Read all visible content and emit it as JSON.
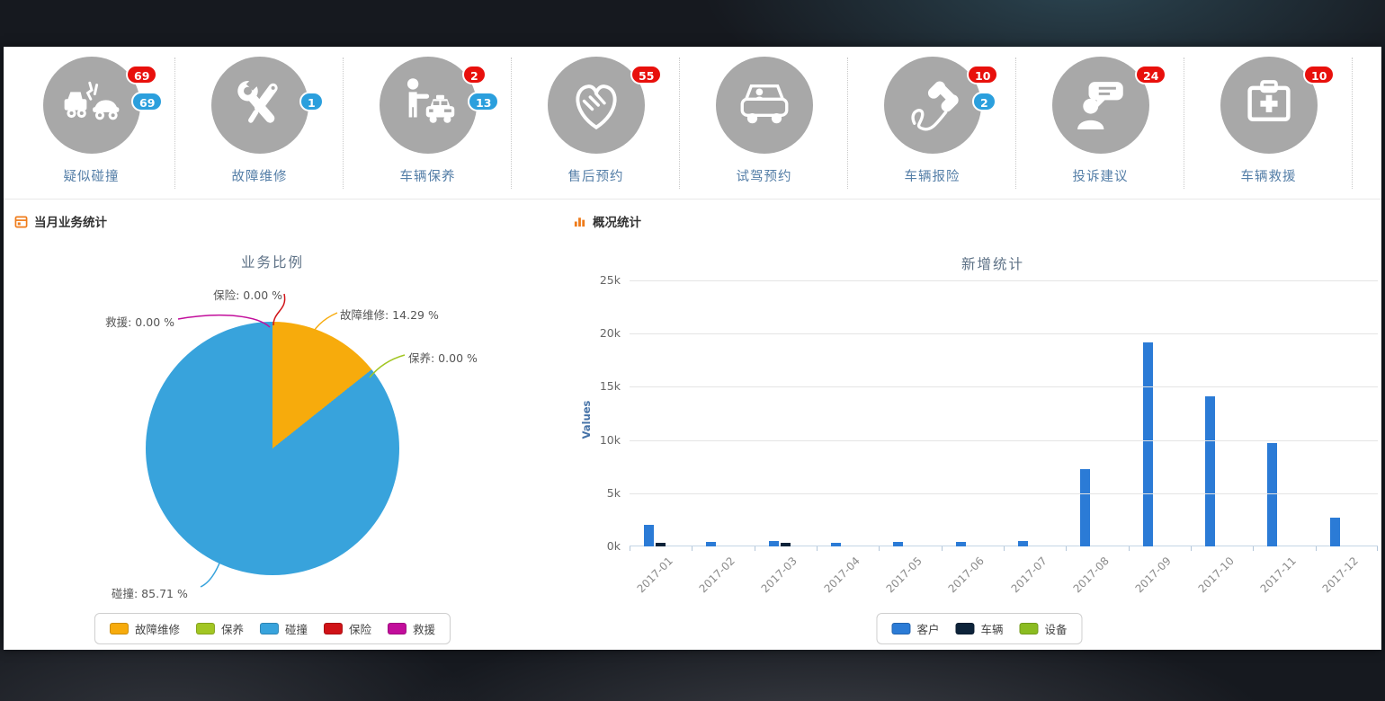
{
  "quick_actions": [
    {
      "label": "疑似碰撞",
      "icon": "car-crash-icon",
      "badge_red": "69",
      "badge_blue": "69"
    },
    {
      "label": "故障维修",
      "icon": "repair-tools-icon",
      "badge_blue": "1"
    },
    {
      "label": "车辆保养",
      "icon": "car-maintenance-icon",
      "badge_red": "2",
      "badge_blue": "13"
    },
    {
      "label": "售后预约",
      "icon": "handshake-icon",
      "badge_red": "55"
    },
    {
      "label": "试驾预约",
      "icon": "test-drive-car-icon"
    },
    {
      "label": "车辆报险",
      "icon": "phone-report-icon",
      "badge_red": "10",
      "badge_blue": "2"
    },
    {
      "label": "投诉建议",
      "icon": "feedback-person-icon",
      "badge_red": "24"
    },
    {
      "label": "车辆救援",
      "icon": "first-aid-kit-icon",
      "badge_red": "10"
    }
  ],
  "badge_colors": {
    "red": "#e8100c",
    "blue": "#2b9fdd"
  },
  "left_panel": {
    "header": "当月业务统计"
  },
  "right_panel": {
    "header": "概况统计"
  },
  "chart_data": [
    {
      "type": "pie",
      "title": "业务比例",
      "slices": [
        {
          "label": "故障维修",
          "value_pct": 14.29,
          "color": "#f7ab0c"
        },
        {
          "label": "保养",
          "value_pct": 0.0,
          "color": "#a2c623"
        },
        {
          "label": "碰撞",
          "value_pct": 85.71,
          "color": "#38a3dc"
        },
        {
          "label": "保险",
          "value_pct": 0.0,
          "color": "#d01217"
        },
        {
          "label": "救援",
          "value_pct": 0.0,
          "color": "#c20d9b"
        }
      ],
      "callouts": [
        {
          "text": "保险: 0.00 %",
          "slice_index": 3
        },
        {
          "text": "救援: 0.00 %",
          "slice_index": 4
        },
        {
          "text": "故障维修: 14.29 %",
          "slice_index": 0
        },
        {
          "text": "保养: 0.00 %",
          "slice_index": 1
        },
        {
          "text": "碰撞: 85.71 %",
          "slice_index": 2
        }
      ],
      "legend_position": "bottom"
    },
    {
      "type": "bar",
      "title": "新增统计",
      "ylabel": "Values",
      "ylim": [
        0,
        25000
      ],
      "yticks": [
        "0k",
        "5k",
        "10k",
        "15k",
        "20k",
        "25k"
      ],
      "categories": [
        "2017-01",
        "2017-02",
        "2017-03",
        "2017-04",
        "2017-05",
        "2017-06",
        "2017-07",
        "2017-08",
        "2017-09",
        "2017-10",
        "2017-11",
        "2017-12"
      ],
      "series": [
        {
          "name": "客户",
          "color": "#2b7bd6",
          "values": [
            2000,
            400,
            550,
            350,
            400,
            450,
            500,
            7300,
            19200,
            14100,
            9700,
            2700
          ]
        },
        {
          "name": "车辆",
          "color": "#0d233a",
          "values": [
            300,
            0,
            300,
            0,
            0,
            0,
            0,
            0,
            0,
            0,
            0,
            0
          ]
        },
        {
          "name": "设备",
          "color": "#8bbc21",
          "values": [
            0,
            0,
            0,
            0,
            0,
            0,
            0,
            0,
            0,
            0,
            0,
            0
          ]
        }
      ],
      "grid": true,
      "legend_position": "bottom"
    }
  ]
}
